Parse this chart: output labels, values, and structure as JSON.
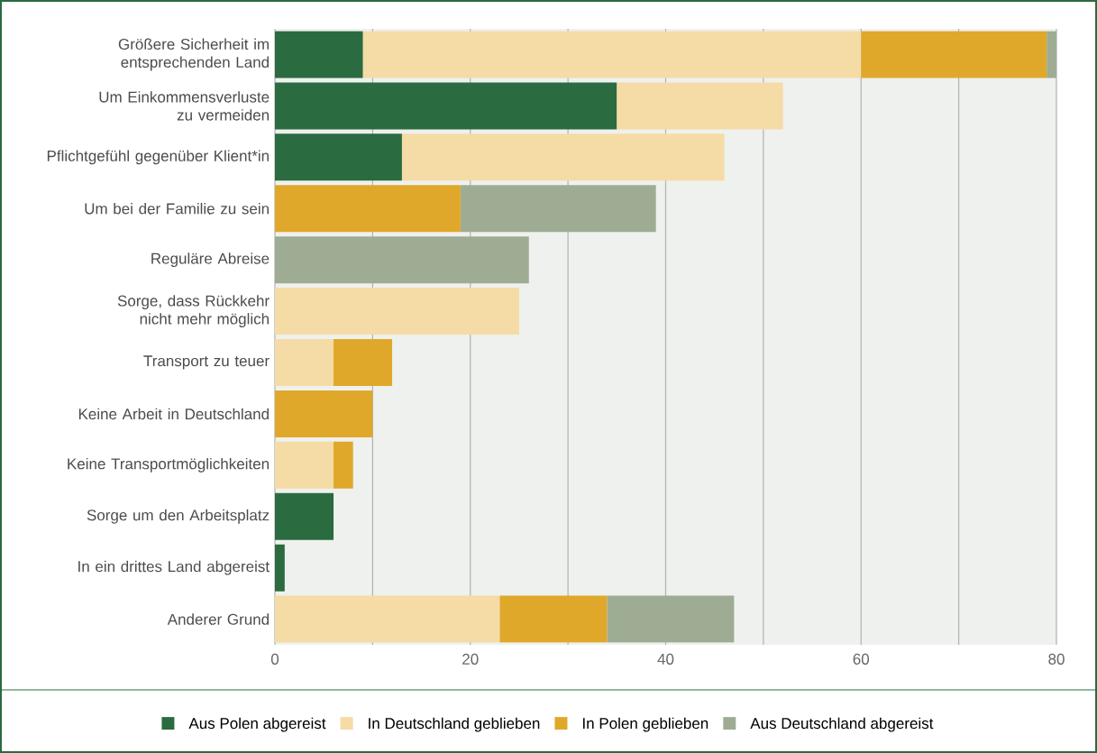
{
  "chart_data": {
    "type": "bar",
    "orientation": "horizontal",
    "stacked": true,
    "categories": [
      "Größere Sicherheit im entsprechenden Land",
      "Um Einkommensverluste zu vermeiden",
      "Pflichtgefühl gegenüber Klient*in",
      "Um bei der Familie zu sein",
      "Reguläre Abreise",
      "Sorge, dass Rückkehr nicht mehr möglich",
      "Transport zu teuer",
      "Keine Arbeit in Deutschland",
      "Keine Transportmöglichkeiten",
      "Sorge um den Arbeitsplatz",
      "In ein drittes Land abgereist",
      "Anderer Grund"
    ],
    "series": [
      {
        "name": "Aus Polen abgereist",
        "color": "#2a6b3f",
        "values": [
          9,
          35,
          13,
          null,
          null,
          null,
          null,
          null,
          null,
          6,
          1,
          null
        ]
      },
      {
        "name": "In Deutschland geblieben",
        "color": "#f5dba5",
        "values": [
          51,
          17,
          33,
          null,
          null,
          25,
          6,
          null,
          6,
          null,
          null,
          23
        ]
      },
      {
        "name": "In Polen geblieben",
        "color": "#e0a82a",
        "values": [
          19,
          null,
          null,
          19,
          null,
          null,
          6,
          10,
          2,
          null,
          null,
          11
        ]
      },
      {
        "name": "Aus Deutschland abgereist",
        "color": "#9eac94",
        "values": [
          1,
          null,
          null,
          20,
          26,
          null,
          null,
          null,
          null,
          null,
          null,
          13
        ]
      }
    ],
    "xlim": [
      0,
      80
    ],
    "xticks": [
      0,
      {
        "value": 10,
        "label": null
      },
      20,
      {
        "value": 30,
        "label": null
      },
      40,
      {
        "value": 50,
        "label": null
      },
      60,
      {
        "value": 70,
        "label": null
      },
      80
    ],
    "grid": "x",
    "legend": "bottom"
  }
}
